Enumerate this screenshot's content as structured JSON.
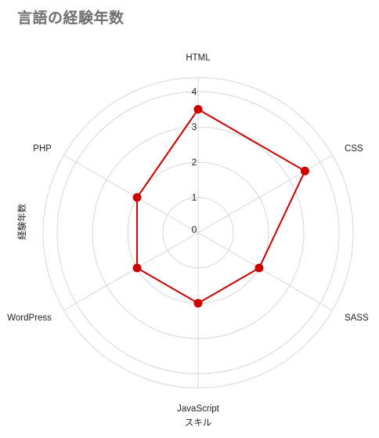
{
  "page": {
    "title": "言語の経験年数"
  },
  "chart_data": {
    "type": "radar",
    "title": "言語の経験年数",
    "categories": [
      "HTML",
      "CSS",
      "SASS",
      "JavaScript",
      "WordPress",
      "PHP"
    ],
    "series": [
      {
        "values": [
          3.5,
          3.5,
          2,
          2,
          2,
          2
        ]
      }
    ],
    "rlim": [
      0,
      4
    ],
    "ticks": [
      0,
      1,
      2,
      3,
      4
    ],
    "xlabel": "スキル",
    "ylabel": "経験年数",
    "grid": true,
    "legend": "none",
    "colors": {
      "series": "#cc0000",
      "grid": "#d6d6d6",
      "text": "#222222"
    }
  }
}
